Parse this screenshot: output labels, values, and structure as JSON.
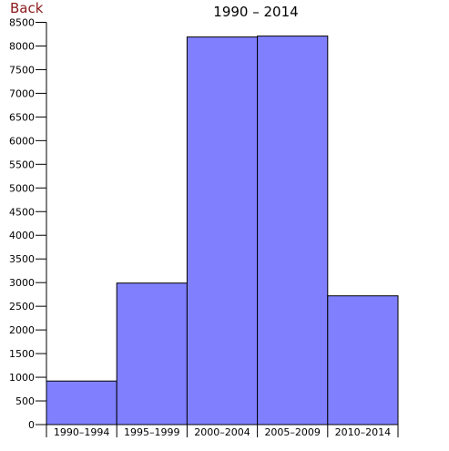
{
  "nav": {
    "back_label": "Back"
  },
  "colors": {
    "bar_fill": "#8080ff",
    "bar_stroke": "#000000",
    "link": "#8b1a1a"
  },
  "chart_data": {
    "type": "bar",
    "title": "1990 – 2014",
    "categories": [
      "1990–1994",
      "1995–1999",
      "2000–2004",
      "2005–2009",
      "2010–2014"
    ],
    "values": [
      920,
      2990,
      8190,
      8210,
      2720
    ],
    "ylim": [
      0,
      8500
    ],
    "yticks": [
      0,
      500,
      1000,
      1500,
      2000,
      2500,
      3000,
      3500,
      4000,
      4500,
      5000,
      5500,
      6000,
      6500,
      7000,
      7500,
      8000,
      8500
    ],
    "xlabel": "",
    "ylabel": "",
    "grid": false,
    "legend": null
  }
}
